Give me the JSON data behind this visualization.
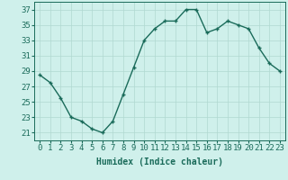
{
  "x": [
    0,
    1,
    2,
    3,
    4,
    5,
    6,
    7,
    8,
    9,
    10,
    11,
    12,
    13,
    14,
    15,
    16,
    17,
    18,
    19,
    20,
    21,
    22,
    23
  ],
  "y": [
    28.5,
    27.5,
    25.5,
    23.0,
    22.5,
    21.5,
    21.0,
    22.5,
    26.0,
    29.5,
    33.0,
    34.5,
    35.5,
    35.5,
    37.0,
    37.0,
    34.0,
    34.5,
    35.5,
    35.0,
    34.5,
    32.0,
    30.0,
    29.0
  ],
  "line_color": "#1a6b5a",
  "marker": "+",
  "bg_color": "#cff0eb",
  "grid_color": "#b0d8d0",
  "xlabel": "Humidex (Indice chaleur)",
  "xlabel_fontsize": 7,
  "tick_fontsize": 6.5,
  "ylim": [
    20,
    38
  ],
  "yticks": [
    21,
    23,
    25,
    27,
    29,
    31,
    33,
    35,
    37
  ],
  "xticks": [
    0,
    1,
    2,
    3,
    4,
    5,
    6,
    7,
    8,
    9,
    10,
    11,
    12,
    13,
    14,
    15,
    16,
    17,
    18,
    19,
    20,
    21,
    22,
    23
  ],
  "linewidth": 1.0,
  "markersize": 3.5
}
